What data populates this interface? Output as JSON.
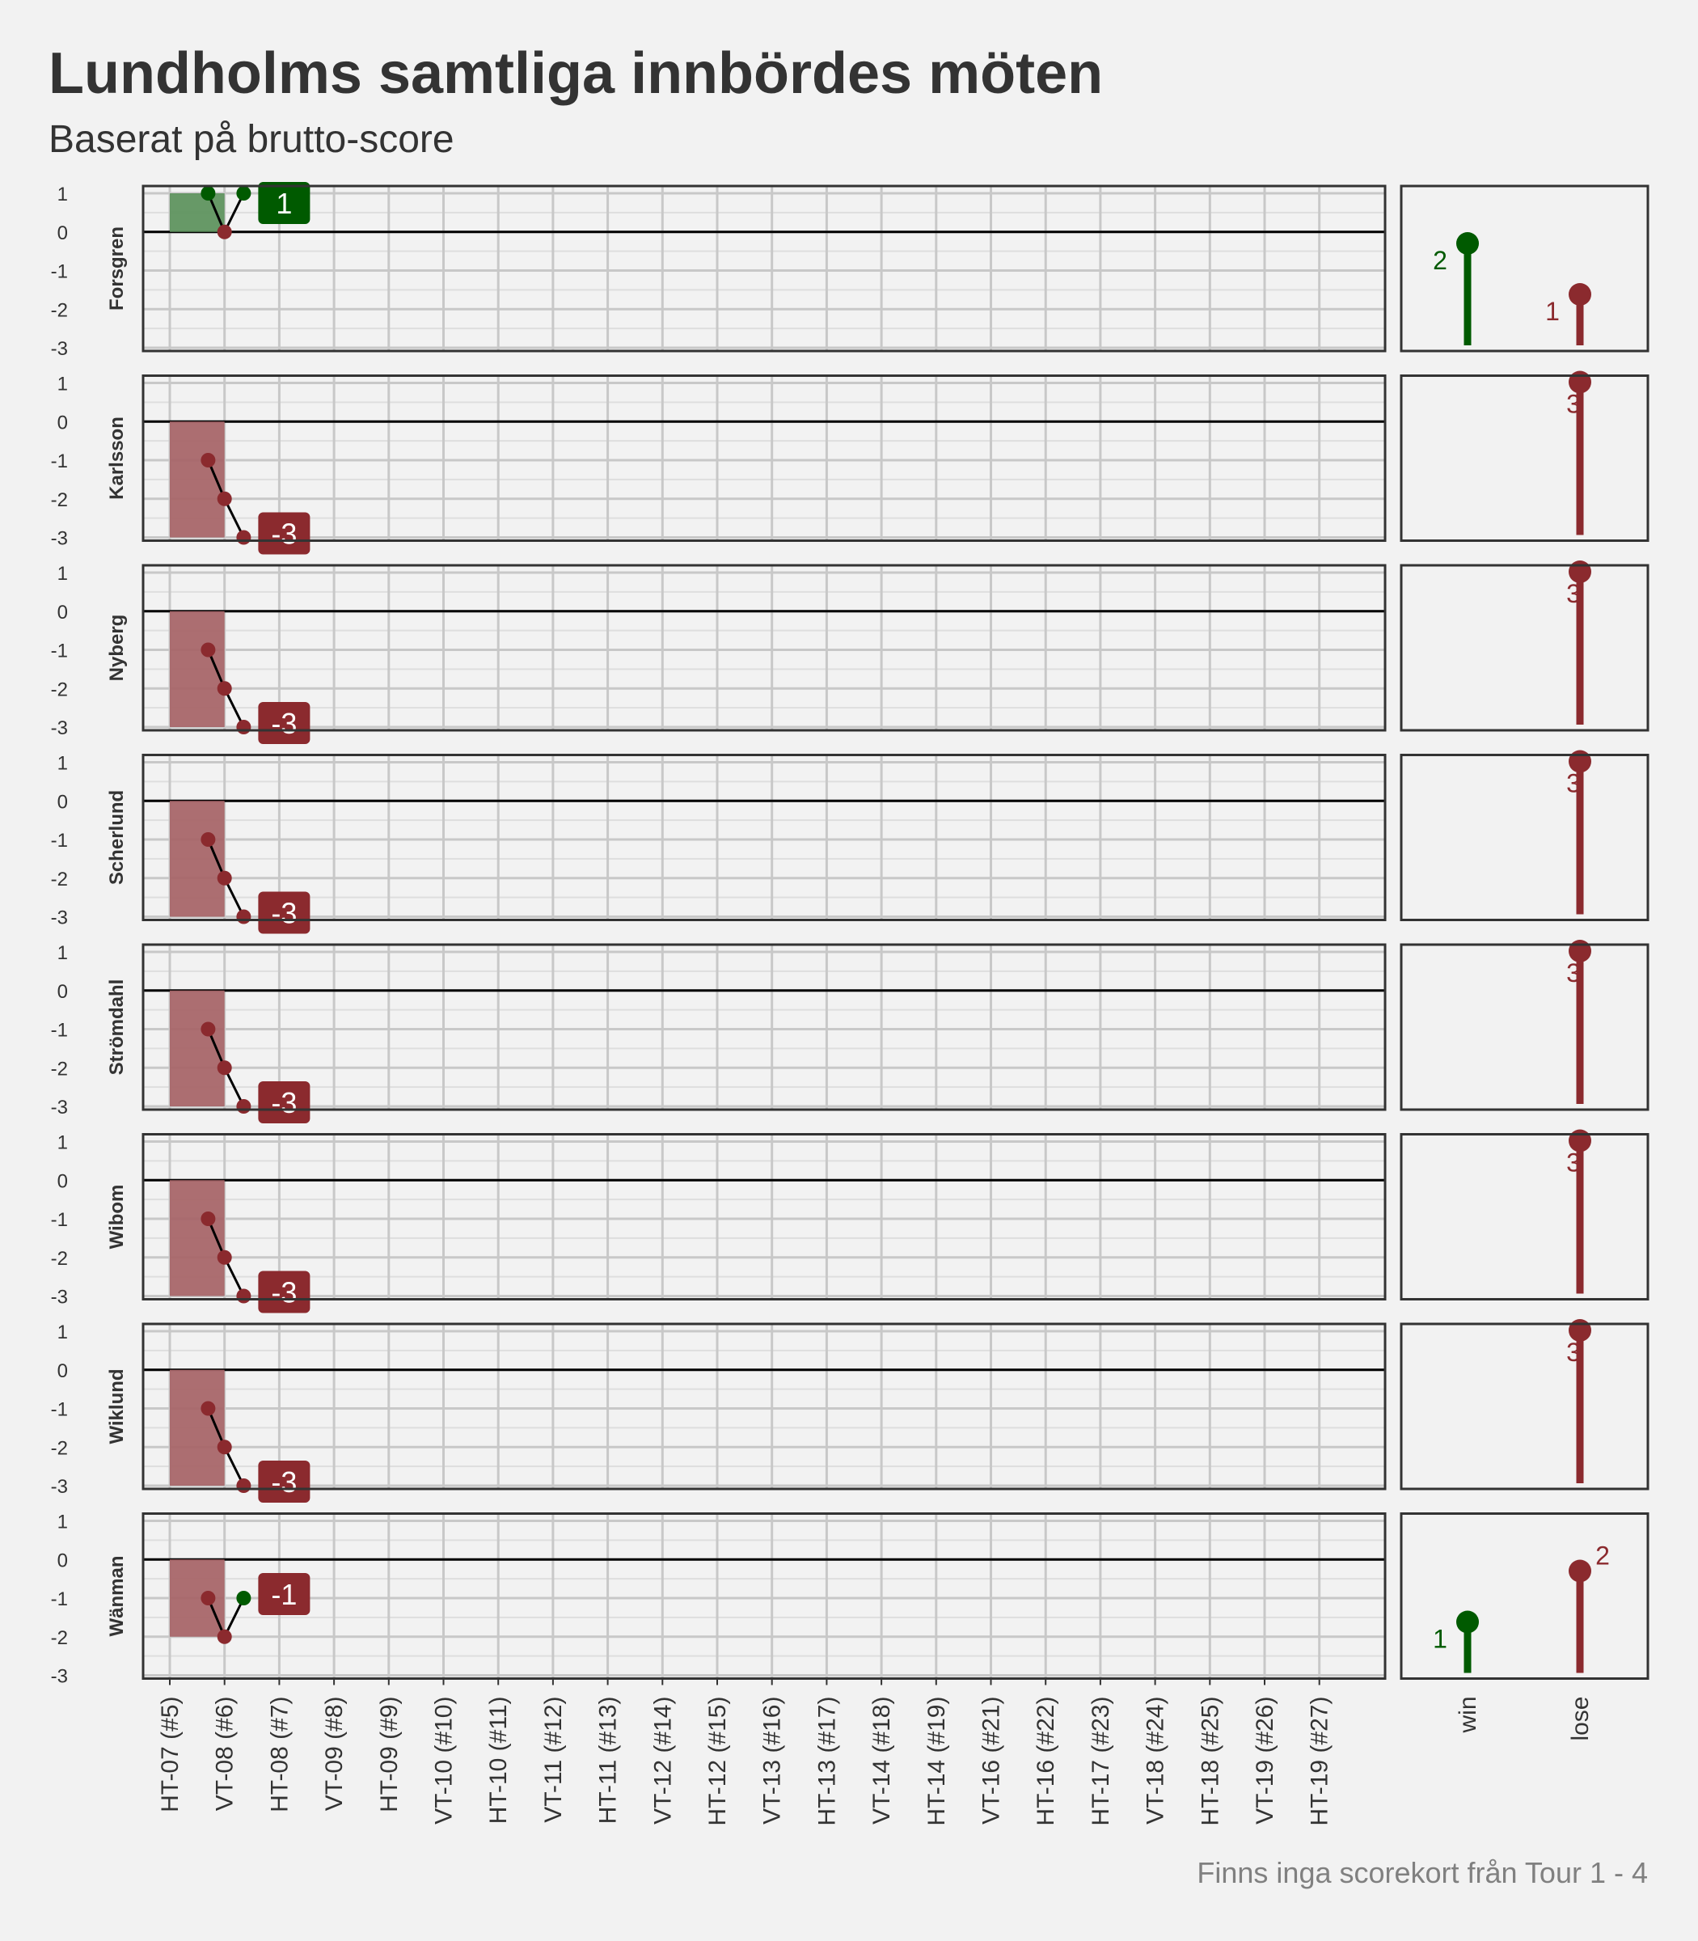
{
  "title": "Lundholms samtliga innbördes möten",
  "subtitle": "Baserat på brutto-score",
  "caption": "Finns inga scorekort från Tour 1 - 4",
  "colors": {
    "win": "#005a00",
    "lose": "#8b2a2e",
    "win_fill": "#5f935f",
    "lose_fill": "#a86669",
    "background": "#f2f2f2",
    "grid": "#c8c8c8",
    "border": "#333333"
  },
  "chart_data": {
    "type": "line",
    "x_categories": [
      "HT-07 (#5)",
      "VT-08 (#6)",
      "HT-08 (#7)",
      "VT-09 (#8)",
      "HT-09 (#9)",
      "VT-10 (#10)",
      "HT-10 (#11)",
      "VT-11 (#12)",
      "HT-11 (#13)",
      "VT-12 (#14)",
      "HT-12 (#15)",
      "VT-13 (#16)",
      "HT-13 (#17)",
      "VT-14 (#18)",
      "HT-14 (#19)",
      "VT-16 (#21)",
      "HT-16 (#22)",
      "HT-17 (#23)",
      "VT-18 (#24)",
      "HT-18 (#25)",
      "VT-19 (#26)",
      "HT-19 (#27)"
    ],
    "y_ticks": [
      1,
      0,
      -1,
      -2,
      -3
    ],
    "ylim": [
      -3,
      1
    ],
    "grid": true,
    "facets": [
      {
        "name": "Forsgren",
        "points": [
          {
            "x": 0.7,
            "y": 1,
            "r": "win"
          },
          {
            "x": 1.0,
            "y": 0,
            "r": "lose"
          },
          {
            "x": 1.35,
            "y": 1,
            "r": "win"
          }
        ],
        "final": "1",
        "final_result": "win",
        "summary": {
          "win": 2,
          "lose": 1,
          "win_label": "2",
          "lose_label": "1"
        }
      },
      {
        "name": "Karlsson",
        "points": [
          {
            "x": 0.7,
            "y": -1,
            "r": "lose"
          },
          {
            "x": 1.0,
            "y": -2,
            "r": "lose"
          },
          {
            "x": 1.35,
            "y": -3,
            "r": "lose"
          }
        ],
        "final": "-3",
        "final_result": "lose",
        "summary": {
          "win": 0,
          "lose": 3,
          "win_label": "",
          "lose_label": "3"
        }
      },
      {
        "name": "Nyberg",
        "points": [
          {
            "x": 0.7,
            "y": -1,
            "r": "lose"
          },
          {
            "x": 1.0,
            "y": -2,
            "r": "lose"
          },
          {
            "x": 1.35,
            "y": -3,
            "r": "lose"
          }
        ],
        "final": "-3",
        "final_result": "lose",
        "summary": {
          "win": 0,
          "lose": 3,
          "win_label": "",
          "lose_label": "3"
        }
      },
      {
        "name": "Scherlund",
        "points": [
          {
            "x": 0.7,
            "y": -1,
            "r": "lose"
          },
          {
            "x": 1.0,
            "y": -2,
            "r": "lose"
          },
          {
            "x": 1.35,
            "y": -3,
            "r": "lose"
          }
        ],
        "final": "-3",
        "final_result": "lose",
        "summary": {
          "win": 0,
          "lose": 3,
          "win_label": "",
          "lose_label": "3"
        }
      },
      {
        "name": "Strömdahl",
        "points": [
          {
            "x": 0.7,
            "y": -1,
            "r": "lose"
          },
          {
            "x": 1.0,
            "y": -2,
            "r": "lose"
          },
          {
            "x": 1.35,
            "y": -3,
            "r": "lose"
          }
        ],
        "final": "-3",
        "final_result": "lose",
        "summary": {
          "win": 0,
          "lose": 3,
          "win_label": "",
          "lose_label": "3"
        }
      },
      {
        "name": "Wibom",
        "points": [
          {
            "x": 0.7,
            "y": -1,
            "r": "lose"
          },
          {
            "x": 1.0,
            "y": -2,
            "r": "lose"
          },
          {
            "x": 1.35,
            "y": -3,
            "r": "lose"
          }
        ],
        "final": "-3",
        "final_result": "lose",
        "summary": {
          "win": 0,
          "lose": 3,
          "win_label": "",
          "lose_label": "3"
        }
      },
      {
        "name": "Wiklund",
        "points": [
          {
            "x": 0.7,
            "y": -1,
            "r": "lose"
          },
          {
            "x": 1.0,
            "y": -2,
            "r": "lose"
          },
          {
            "x": 1.35,
            "y": -3,
            "r": "lose"
          }
        ],
        "final": "-3",
        "final_result": "lose",
        "summary": {
          "win": 0,
          "lose": 3,
          "win_label": "",
          "lose_label": "3"
        }
      },
      {
        "name": "Wänman",
        "points": [
          {
            "x": 0.7,
            "y": -1,
            "r": "lose"
          },
          {
            "x": 1.0,
            "y": -2,
            "r": "lose"
          },
          {
            "x": 1.35,
            "y": -1,
            "r": "win"
          }
        ],
        "final": "-1",
        "final_result": "lose",
        "summary": {
          "win": 1,
          "lose": 2,
          "win_label": "1",
          "lose_label": "2"
        }
      }
    ],
    "summary_categories": [
      "win",
      "lose"
    ],
    "summary_ylim": [
      0,
      3
    ]
  }
}
